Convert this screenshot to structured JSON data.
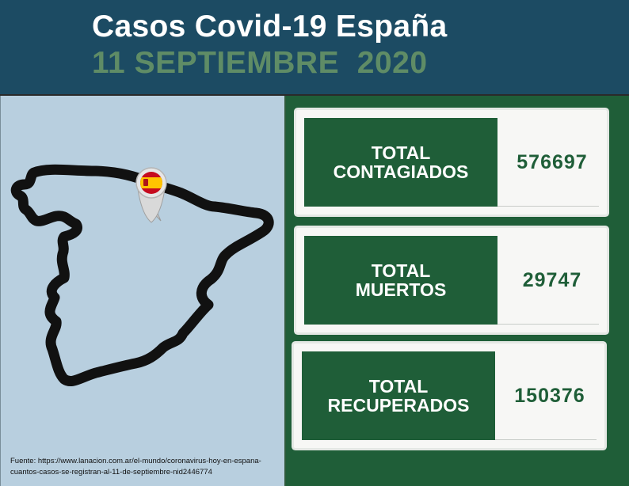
{
  "header": {
    "title": "Casos Covid-19 España",
    "subtitle": "11 SEPTIEMBRE  2020"
  },
  "map": {
    "marker": "spain-flag-pin-icon",
    "outline_color": "#111111",
    "background_color": "#b8cfdf"
  },
  "source": "Fuente: https://www.lanacion.com.ar/el-mundo/coronavirus-hoy-en-espana-cuantos-casos-se-registran-al-11-de-septiembre-nid2446774",
  "stats": [
    {
      "label_line1": "TOTAL",
      "label_line2": "CONTAGIADOS",
      "value": "576697"
    },
    {
      "label_line1": "TOTAL",
      "label_line2": "MUERTOS",
      "value": "29747"
    },
    {
      "label_line1": "TOTAL",
      "label_line2": "RECUPERADOS",
      "value": "150376"
    }
  ],
  "colors": {
    "header_bg": "#1c4b63",
    "accent_green": "#1f5e38",
    "subtitle_green": "#5f8c66"
  }
}
